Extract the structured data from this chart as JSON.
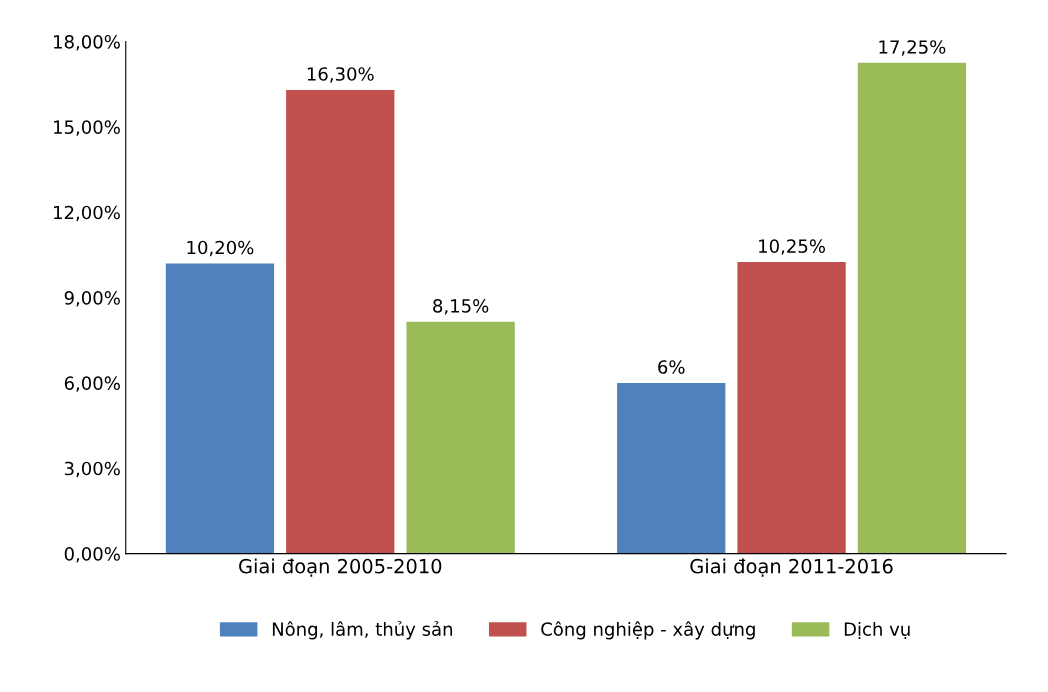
{
  "chart_data": {
    "type": "bar",
    "categories": [
      "Giai đoạn 2005-2010",
      "Giai đoạn 2011-2016"
    ],
    "series": [
      {
        "name": "Nông, lâm, thủy sản",
        "color": "#4f81bd",
        "values": [
          10.2,
          6
        ],
        "value_labels": [
          "10,20%",
          "6%"
        ]
      },
      {
        "name": "Công nghiệp - xây dựng",
        "color": "#c0504d",
        "values": [
          16.3,
          10.25
        ],
        "value_labels": [
          "16,30%",
          "10,25%"
        ]
      },
      {
        "name": "Dịch vụ",
        "color": "#9bbb59",
        "values": [
          8.15,
          17.25
        ],
        "value_labels": [
          "8,15%",
          "17,25%"
        ]
      }
    ],
    "ylim": [
      0,
      18
    ],
    "yticks": [
      {
        "value": 0,
        "label": "0,00%"
      },
      {
        "value": 3,
        "label": "3,00%"
      },
      {
        "value": 6,
        "label": "6,00%"
      },
      {
        "value": 9,
        "label": "9,00%"
      },
      {
        "value": 12,
        "label": "12,00%"
      },
      {
        "value": 15,
        "label": "15,00%"
      },
      {
        "value": 18,
        "label": "18,00%"
      }
    ],
    "grid": false,
    "legend": "bottom"
  }
}
